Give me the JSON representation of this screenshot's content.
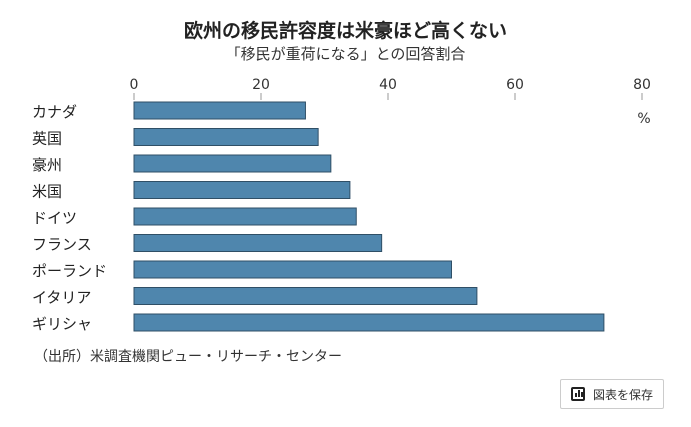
{
  "chart_data": {
    "type": "bar",
    "orientation": "horizontal",
    "title": "欧州の移民許容度は米豪ほど高くない",
    "subtitle": "「移民が重荷になる」との回答割合",
    "categories": [
      "カナダ",
      "英国",
      "豪州",
      "米国",
      "ドイツ",
      "フランス",
      "ポーランド",
      "イタリア",
      "ギリシャ"
    ],
    "values": [
      27,
      29,
      31,
      34,
      35,
      39,
      50,
      54,
      74
    ],
    "xlim": [
      0,
      80
    ],
    "xticks": [
      0,
      20,
      40,
      60,
      80
    ],
    "unit": "%",
    "bar_color": "#4f86ad",
    "grid": false
  },
  "source": "（出所）米調査機関ピュー・リサーチ・センター",
  "save_button": {
    "label": "図表を保存",
    "icon": "chart-icon"
  }
}
